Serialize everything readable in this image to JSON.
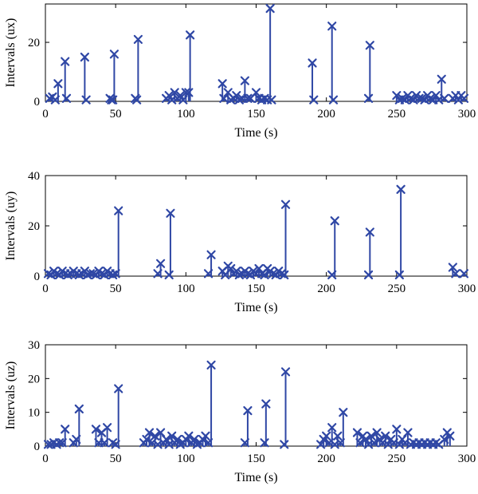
{
  "colors": {
    "series": "#2f47a5",
    "axis": "#000000"
  },
  "chart_data": [
    {
      "type": "stem",
      "xlabel": "Time (s)",
      "ylabel": "Intervals (ux)",
      "xlim": [
        0,
        300
      ],
      "ylim": [
        0,
        33
      ],
      "xticks": [
        0,
        50,
        100,
        150,
        200,
        250,
        300
      ],
      "yticks": [
        0,
        20
      ],
      "x": [
        3,
        5,
        7,
        9,
        14,
        15,
        28,
        29,
        46,
        47,
        48,
        49,
        64,
        65,
        66,
        86,
        88,
        90,
        92,
        94,
        96,
        98,
        100,
        102,
        103,
        126,
        127,
        130,
        132,
        134,
        136,
        138,
        140,
        142,
        144,
        146,
        150,
        152,
        154,
        156,
        158,
        160,
        161,
        190,
        191,
        204,
        205,
        230,
        231,
        250,
        252,
        254,
        256,
        258,
        260,
        262,
        264,
        266,
        268,
        270,
        272,
        274,
        276,
        278,
        280,
        282,
        284,
        290,
        292,
        294,
        296,
        298
      ],
      "y": [
        1,
        1.5,
        0.5,
        6,
        13.5,
        1,
        15,
        0.5,
        1,
        0.5,
        0.5,
        16,
        1,
        0.5,
        21,
        1,
        2,
        0.5,
        3,
        1,
        2,
        0.5,
        3,
        3,
        22.5,
        6,
        1,
        3,
        0.5,
        1,
        2,
        0.5,
        1,
        7,
        1,
        1,
        3,
        1,
        0.5,
        1,
        0.5,
        31.5,
        0.5,
        13,
        0.5,
        25.5,
        0.5,
        1,
        19,
        2,
        0.5,
        1,
        0.5,
        2,
        1,
        0.5,
        2,
        1,
        1,
        0.5,
        2,
        1,
        0.5,
        2,
        0.5,
        7.5,
        1,
        1,
        2,
        0.5,
        2,
        1
      ]
    },
    {
      "type": "stem",
      "xlabel": "Time (s)",
      "ylabel": "Intervals (uy)",
      "xlim": [
        0,
        300
      ],
      "ylim": [
        0,
        40
      ],
      "xticks": [
        0,
        50,
        100,
        150,
        200,
        250,
        300
      ],
      "yticks": [
        0,
        20,
        40
      ],
      "x": [
        2,
        4,
        6,
        8,
        10,
        12,
        14,
        16,
        18,
        20,
        22,
        24,
        26,
        28,
        30,
        32,
        34,
        36,
        38,
        40,
        42,
        44,
        46,
        48,
        50,
        52,
        80,
        82,
        88,
        89,
        116,
        118,
        126,
        128,
        130,
        132,
        134,
        136,
        138,
        140,
        142,
        144,
        146,
        148,
        150,
        152,
        154,
        156,
        158,
        160,
        162,
        164,
        166,
        168,
        170,
        171,
        204,
        206,
        230,
        231,
        252,
        253,
        290,
        292,
        298
      ],
      "y": [
        1,
        0.5,
        2,
        1,
        0.5,
        2,
        1,
        0.5,
        1,
        2,
        1,
        0.5,
        1,
        2,
        0.5,
        1,
        1,
        0.5,
        2,
        1,
        0.5,
        2,
        1,
        0.5,
        1,
        26,
        1,
        5,
        0.5,
        25,
        1,
        8.5,
        2,
        0.5,
        4,
        3,
        1,
        2,
        0.5,
        1,
        2,
        1,
        0.5,
        2,
        1,
        3,
        1,
        0.5,
        3,
        2,
        1,
        0.5,
        2,
        1,
        0.5,
        28.5,
        0.5,
        22,
        0.5,
        17.5,
        0.5,
        34.5,
        3.5,
        1,
        1
      ]
    },
    {
      "type": "stem",
      "xlabel": "Time (s)",
      "ylabel": "Intervals (uz)",
      "xlim": [
        0,
        300
      ],
      "ylim": [
        0,
        30
      ],
      "xticks": [
        0,
        50,
        100,
        150,
        200,
        250,
        300
      ],
      "yticks": [
        0,
        10,
        20,
        30
      ],
      "x": [
        2,
        4,
        6,
        8,
        10,
        12,
        14,
        20,
        22,
        24,
        36,
        38,
        40,
        42,
        44,
        48,
        50,
        52,
        70,
        72,
        74,
        76,
        78,
        80,
        82,
        84,
        86,
        88,
        90,
        92,
        94,
        96,
        98,
        100,
        102,
        104,
        106,
        108,
        110,
        112,
        114,
        116,
        118,
        142,
        144,
        156,
        157,
        170,
        171,
        196,
        198,
        200,
        202,
        204,
        206,
        208,
        210,
        212,
        222,
        224,
        226,
        228,
        230,
        232,
        234,
        236,
        238,
        240,
        242,
        244,
        246,
        248,
        250,
        252,
        254,
        256,
        258,
        260,
        262,
        264,
        266,
        268,
        270,
        272,
        274,
        276,
        278,
        280,
        284,
        286,
        288
      ],
      "y": [
        0.5,
        0.5,
        1,
        0.5,
        1,
        1,
        5,
        1,
        2,
        11,
        5,
        1,
        4,
        1,
        5.5,
        1,
        0.5,
        17,
        1,
        2,
        4,
        1,
        3,
        0.5,
        4,
        1,
        2,
        0.5,
        3,
        1,
        2,
        0.5,
        1,
        2,
        3,
        1,
        2,
        0.5,
        1,
        2,
        3,
        1,
        24,
        1,
        10.5,
        1,
        12.5,
        0.5,
        22,
        0.5,
        2,
        3,
        1,
        5.5,
        0.5,
        3,
        1,
        10,
        4,
        1,
        3,
        2,
        0.5,
        3,
        1,
        4,
        2,
        1,
        3,
        0.5,
        2,
        1,
        5,
        0.5,
        2,
        1,
        4,
        0.5,
        1,
        0.5,
        1,
        0.5,
        1,
        0.5,
        1,
        0.5,
        1,
        0.5,
        2,
        4,
        3
      ]
    }
  ]
}
